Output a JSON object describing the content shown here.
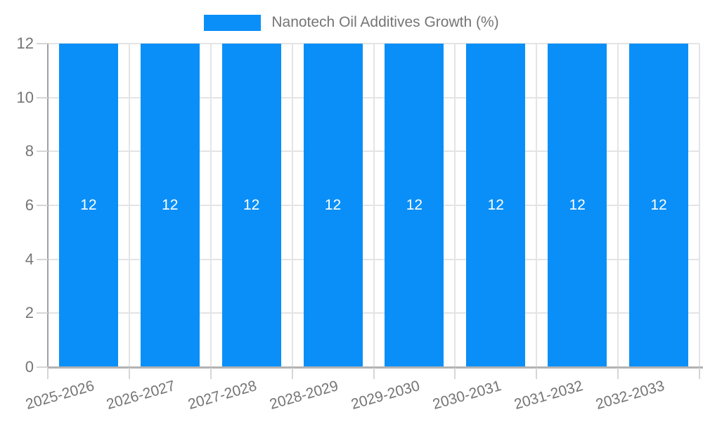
{
  "legend": {
    "position": "top-center",
    "label": "Nanotech Oil Additives Growth (%)"
  },
  "chart_data": {
    "type": "bar",
    "title": "Nanotech Oil Additives Growth (%)",
    "categories": [
      "2025-2026",
      "2026-2027",
      "2027-2028",
      "2028-2029",
      "2029-2030",
      "2030-2031",
      "2031-2032",
      "2032-2033"
    ],
    "values": [
      12,
      12,
      12,
      12,
      12,
      12,
      12,
      12
    ],
    "bar_value_labels": [
      "12",
      "12",
      "12",
      "12",
      "12",
      "12",
      "12",
      "12"
    ],
    "xlabel": "",
    "ylabel": "",
    "ylim": [
      0,
      12
    ],
    "yticks": [
      0,
      2,
      4,
      6,
      8,
      10,
      12
    ],
    "grid": true,
    "legend_position": "top-center",
    "colors": {
      "bar": "#0a8ff8",
      "bar_label": "#ffffff",
      "axis_text": "#757575",
      "y_axis_line": "#a0a0a0",
      "x_axis_line": "#b3b3b3",
      "grid_line": "#e4e4e4",
      "tick_mark": "#d6d6d6",
      "background": "#ffffff"
    }
  }
}
